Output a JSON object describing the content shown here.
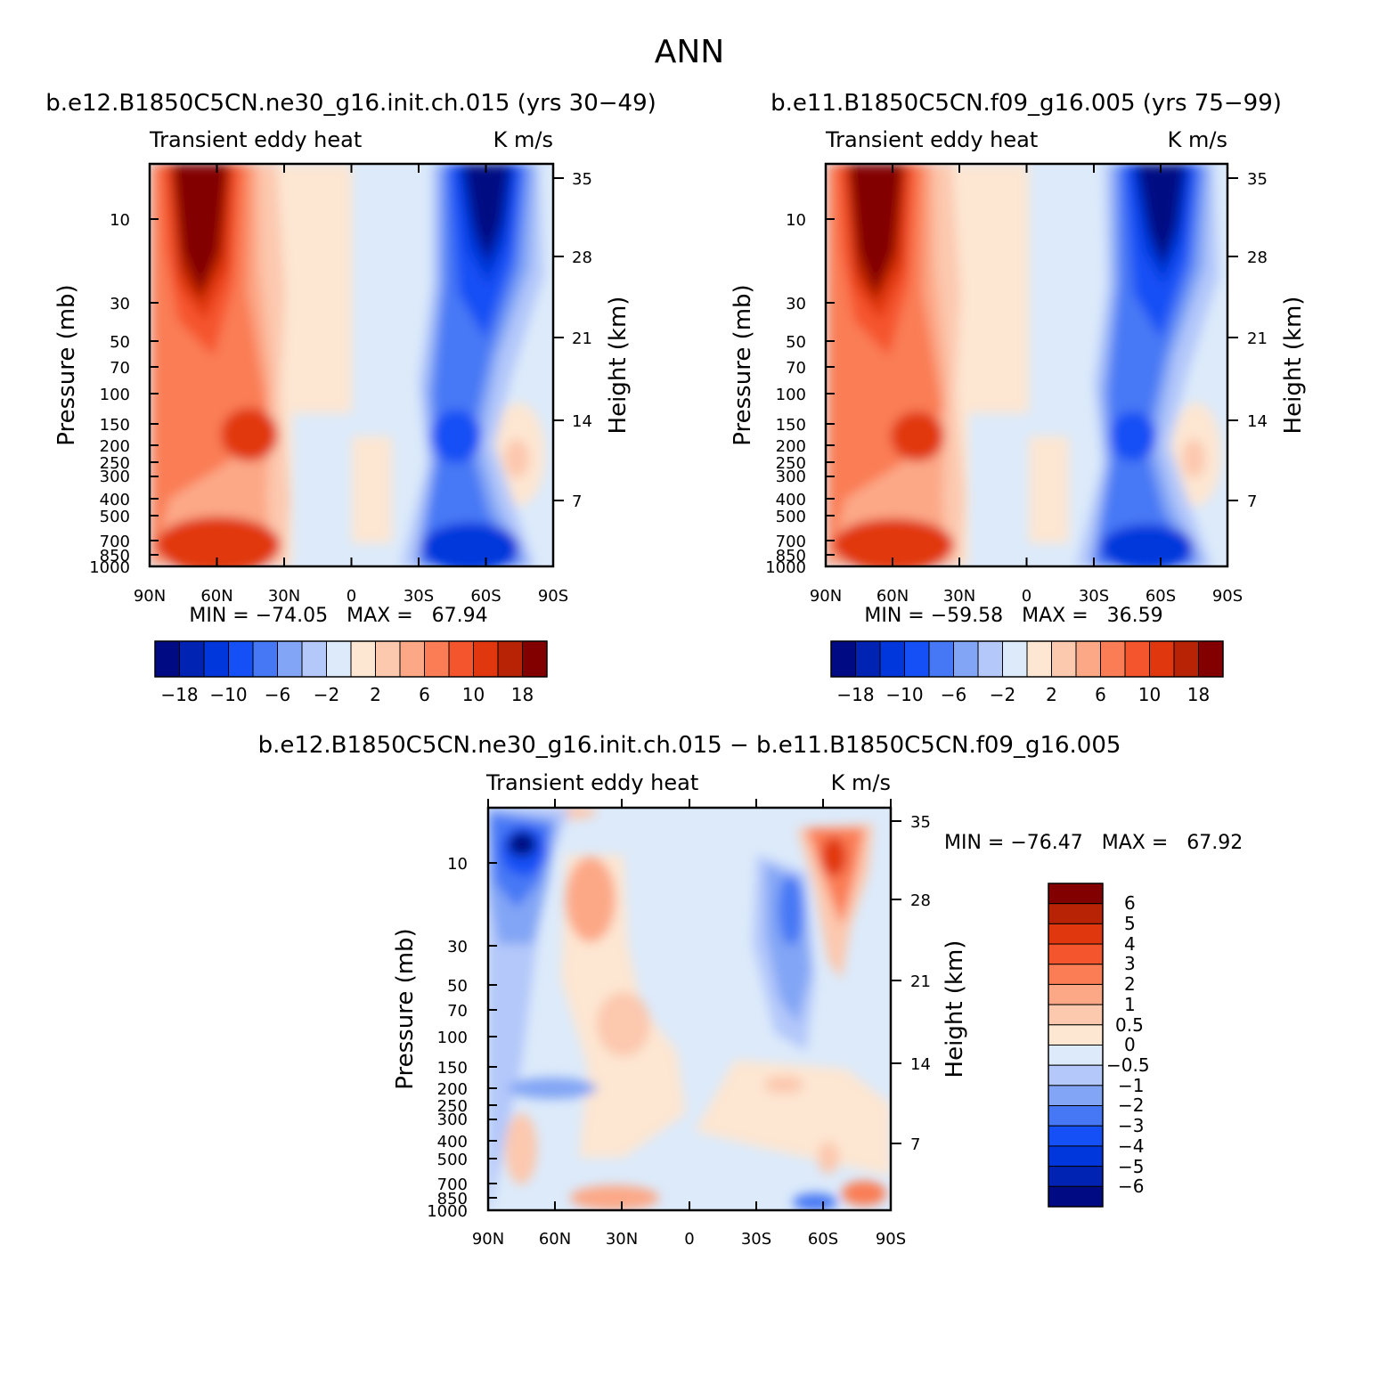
{
  "figure": {
    "title": "ANN"
  },
  "panels": {
    "left": {
      "case_label": "b.e12.B1850C5CN.ne30_g16.init.ch.015 (yrs 30−49)",
      "variable_label": "Transient eddy heat",
      "units_label": "K m/s",
      "minmax_label": "MIN = −74.05   MAX =   67.94"
    },
    "right": {
      "case_label": "b.e11.B1850C5CN.f09_g16.005 (yrs 75−99)",
      "variable_label": "Transient eddy heat",
      "units_label": "K m/s",
      "minmax_label": "MIN = −59.58   MAX =   36.59"
    },
    "diff": {
      "case_label": "b.e12.B1850C5CN.ne30_g16.init.ch.015 − b.e11.B1850C5CN.f09_g16.005",
      "variable_label": "Transient eddy heat",
      "units_label": "K m/s",
      "minmax_label": "MIN = −76.47   MAX =   67.92"
    }
  },
  "chart_data": [
    {
      "type": "heatmap",
      "panel": "left",
      "title": "b.e12.B1850C5CN.ne30_g16.init.ch.015 (yrs 30−49)",
      "subtitle": "Transient eddy heat",
      "units": "K m/s",
      "xlabel": "",
      "ylabel": "Pressure (mb)",
      "ylabel_right": "Height (km)",
      "x_ticks": [
        "90N",
        "60N",
        "30N",
        "0",
        "30S",
        "60S",
        "90S"
      ],
      "y_ticks": [
        "10",
        "30",
        "50",
        "70",
        "100",
        "150",
        "200",
        "250",
        "300",
        "400",
        "500",
        "700",
        "850",
        "1000"
      ],
      "y_right_ticks": [
        "35",
        "28",
        "21",
        "14",
        "7"
      ],
      "min": -74.05,
      "max": 67.94,
      "colorbar_labels": [
        "−18",
        "−10",
        "−6",
        "−2",
        "2",
        "6",
        "10",
        "18"
      ]
    },
    {
      "type": "heatmap",
      "panel": "right",
      "title": "b.e11.B1850C5CN.f09_g16.005 (yrs 75−99)",
      "subtitle": "Transient eddy heat",
      "units": "K m/s",
      "xlabel": "",
      "ylabel": "Pressure (mb)",
      "ylabel_right": "Height (km)",
      "x_ticks": [
        "90N",
        "60N",
        "30N",
        "0",
        "30S",
        "60S",
        "90S"
      ],
      "y_ticks": [
        "10",
        "30",
        "50",
        "70",
        "100",
        "150",
        "200",
        "250",
        "300",
        "400",
        "500",
        "700",
        "850",
        "1000"
      ],
      "y_right_ticks": [
        "35",
        "28",
        "21",
        "14",
        "7"
      ],
      "min": -59.58,
      "max": 36.59,
      "colorbar_labels": [
        "−18",
        "−10",
        "−6",
        "−2",
        "2",
        "6",
        "10",
        "18"
      ]
    },
    {
      "type": "heatmap",
      "panel": "diff",
      "title": "b.e12.B1850C5CN.ne30_g16.init.ch.015 − b.e11.B1850C5CN.f09_g16.005",
      "subtitle": "Transient eddy heat",
      "units": "K m/s",
      "xlabel": "",
      "ylabel": "Pressure (mb)",
      "ylabel_right": "Height (km)",
      "x_ticks": [
        "90N",
        "60N",
        "30N",
        "0",
        "30S",
        "60S",
        "90S"
      ],
      "y_ticks": [
        "10",
        "30",
        "50",
        "70",
        "100",
        "150",
        "200",
        "250",
        "300",
        "400",
        "500",
        "700",
        "850",
        "1000"
      ],
      "y_right_ticks": [
        "35",
        "28",
        "21",
        "14",
        "7"
      ],
      "min": -76.47,
      "max": 67.92,
      "colorbar_labels": [
        "6",
        "5",
        "4",
        "3",
        "2",
        "1",
        "0.5",
        "0",
        "−0.5",
        "−1",
        "−2",
        "−3",
        "−4",
        "−5",
        "−6"
      ]
    }
  ],
  "palettes": {
    "main": [
      "#000a82",
      "#0023b4",
      "#0037dc",
      "#1450f5",
      "#4678f5",
      "#82a5f5",
      "#b4c8fa",
      "#dceafa",
      "#fde6d2",
      "#fcc8ae",
      "#fca887",
      "#fa7d55",
      "#f5552d",
      "#e1370f",
      "#b92305",
      "#820000"
    ],
    "diff": [
      "#000a82",
      "#0023b4",
      "#0037dc",
      "#1450f5",
      "#4678f5",
      "#82a5f5",
      "#b4c8fa",
      "#dceafa",
      "#fde6d2",
      "#fcc8ae",
      "#fca887",
      "#fa7d55",
      "#f5552d",
      "#e1370f",
      "#b92305",
      "#820000"
    ]
  }
}
